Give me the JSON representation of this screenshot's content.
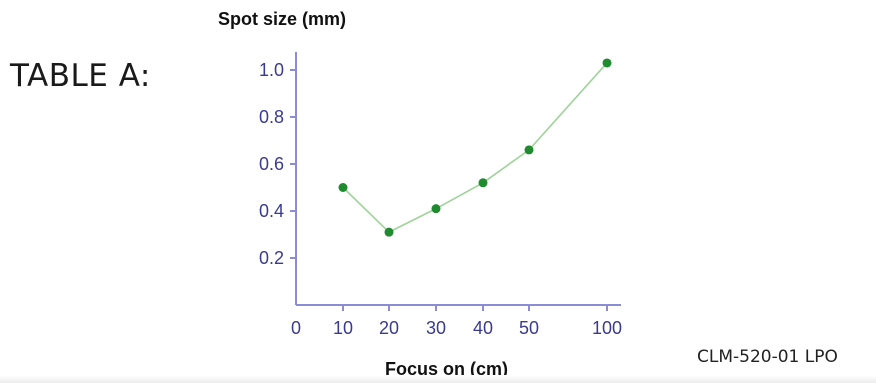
{
  "heading": "TABLE A:",
  "document_code": "CLM-520-01 LPO",
  "colors": {
    "axis": "#8c8cd4",
    "tick_text": "#3a3a90",
    "series_line": "#9ed39a",
    "series_marker": "#1f8a2e"
  },
  "chart_data": {
    "type": "line",
    "title": "",
    "ylabel": "Spot size (mm)",
    "xlabel": "Focus on (cm)",
    "x_tick_labels": [
      "0",
      "10",
      "20",
      "30",
      "40",
      "50",
      "100"
    ],
    "y_tick_labels": [
      "0.2",
      "0.4",
      "0.6",
      "0.8",
      "1.0"
    ],
    "y_ticks": [
      0.2,
      0.4,
      0.6,
      0.8,
      1.0
    ],
    "ylim": [
      0.0,
      1.05
    ],
    "grid": false,
    "legend": "none",
    "series": [
      {
        "x": [
          "10",
          "20",
          "30",
          "40",
          "50",
          "100"
        ],
        "values": [
          0.5,
          0.31,
          0.41,
          0.52,
          0.66,
          1.03
        ]
      }
    ]
  }
}
